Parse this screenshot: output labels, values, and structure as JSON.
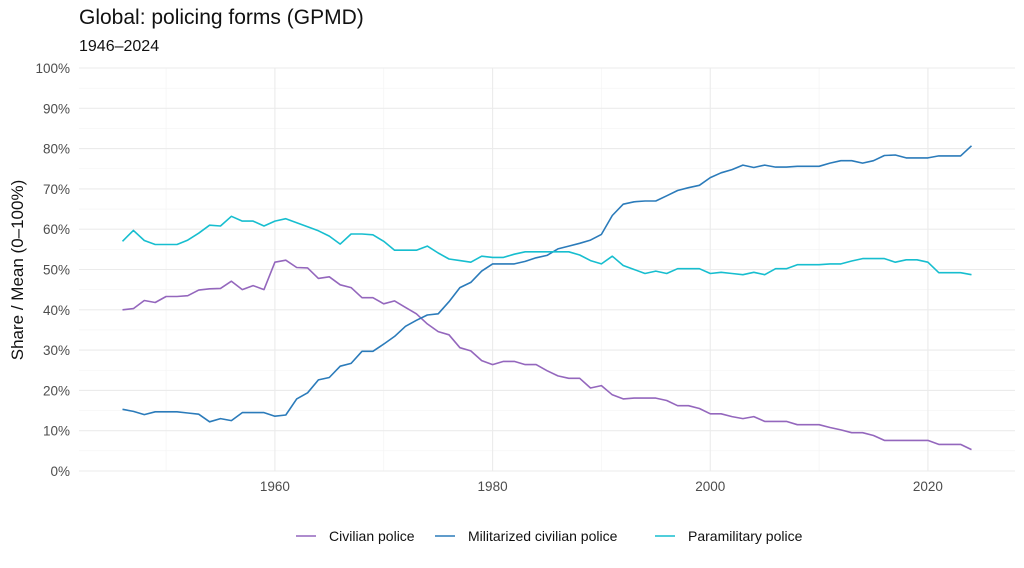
{
  "chart_data": {
    "type": "line",
    "title": "Global: policing forms (GPMD)",
    "subtitle": "1946–2024",
    "xlabel": "",
    "ylabel": "Share / Mean (0–100%)",
    "xlim": [
      1942,
      2028
    ],
    "ylim": [
      0,
      100
    ],
    "x_ticks": [
      1960,
      1980,
      2000,
      2020
    ],
    "y_ticks": [
      "0%",
      "10%",
      "20%",
      "30%",
      "40%",
      "50%",
      "60%",
      "70%",
      "80%",
      "90%",
      "100%"
    ],
    "grid": true,
    "legend_position": "bottom",
    "x": [
      1946,
      1947,
      1948,
      1949,
      1950,
      1951,
      1952,
      1953,
      1954,
      1955,
      1956,
      1957,
      1958,
      1959,
      1960,
      1961,
      1962,
      1963,
      1964,
      1965,
      1966,
      1967,
      1968,
      1969,
      1970,
      1971,
      1972,
      1973,
      1974,
      1975,
      1976,
      1977,
      1978,
      1979,
      1980,
      1981,
      1982,
      1983,
      1984,
      1985,
      1986,
      1987,
      1988,
      1989,
      1990,
      1991,
      1992,
      1993,
      1994,
      1995,
      1996,
      1997,
      1998,
      1999,
      2000,
      2001,
      2002,
      2003,
      2004,
      2005,
      2006,
      2007,
      2008,
      2009,
      2010,
      2011,
      2012,
      2013,
      2014,
      2015,
      2016,
      2017,
      2018,
      2019,
      2020,
      2021,
      2022,
      2023,
      2024
    ],
    "series": [
      {
        "name": "Civilian police",
        "color": "#9467bd",
        "values": [
          40.0,
          40.3,
          42.3,
          41.8,
          43.3,
          43.3,
          43.5,
          44.9,
          45.2,
          45.3,
          47.1,
          45.0,
          46.0,
          45.0,
          51.8,
          52.3,
          50.5,
          50.4,
          47.8,
          48.2,
          46.2,
          45.5,
          43.0,
          43.0,
          41.5,
          42.2,
          40.6,
          39.0,
          36.5,
          34.6,
          33.8,
          30.6,
          29.8,
          27.4,
          26.4,
          27.2,
          27.2,
          26.4,
          26.4,
          24.9,
          23.6,
          23.0,
          23.0,
          20.6,
          21.2,
          18.9,
          17.9,
          18.1,
          18.1,
          18.1,
          17.5,
          16.2,
          16.2,
          15.5,
          14.2,
          14.2,
          13.5,
          13.0,
          13.5,
          12.3,
          12.3,
          12.3,
          11.5,
          11.5,
          11.5,
          10.8,
          10.2,
          9.5,
          9.5,
          8.8,
          7.6,
          7.6,
          7.6,
          7.6,
          7.6,
          6.6,
          6.6,
          6.6,
          5.3
        ]
      },
      {
        "name": "Militarized civilian police",
        "color": "#2b7bba",
        "values": [
          15.3,
          14.8,
          14.0,
          14.7,
          14.7,
          14.7,
          14.4,
          14.1,
          12.2,
          13.0,
          12.5,
          14.5,
          14.5,
          14.5,
          13.6,
          13.9,
          17.9,
          19.4,
          22.6,
          23.2,
          26.0,
          26.7,
          29.7,
          29.7,
          31.5,
          33.4,
          35.9,
          37.4,
          38.7,
          39.0,
          42.0,
          45.5,
          46.8,
          49.6,
          51.4,
          51.4,
          51.4,
          52.0,
          52.9,
          53.5,
          55.1,
          55.8,
          56.5,
          57.3,
          58.7,
          63.4,
          66.2,
          66.8,
          67.0,
          67.0,
          68.3,
          69.6,
          70.3,
          70.9,
          72.8,
          74.0,
          74.8,
          75.9,
          75.3,
          75.9,
          75.4,
          75.4,
          75.6,
          75.6,
          75.6,
          76.4,
          77.0,
          77.0,
          76.4,
          77.0,
          78.3,
          78.4,
          77.7,
          77.7,
          77.7,
          78.2,
          78.2,
          78.2,
          80.7
        ]
      },
      {
        "name": "Paramilitary police",
        "color": "#17becf",
        "values": [
          57.0,
          59.7,
          57.2,
          56.2,
          56.2,
          56.2,
          57.3,
          59.0,
          61.0,
          60.8,
          63.2,
          62.0,
          62.0,
          60.8,
          62.0,
          62.6,
          61.6,
          60.6,
          59.6,
          58.3,
          56.3,
          58.8,
          58.8,
          58.6,
          57.0,
          54.8,
          54.8,
          54.8,
          55.8,
          54.1,
          52.6,
          52.2,
          51.8,
          53.3,
          53.0,
          53.0,
          53.8,
          54.4,
          54.4,
          54.4,
          54.4,
          54.4,
          53.6,
          52.2,
          51.4,
          53.3,
          51.0,
          50.0,
          49.0,
          49.6,
          49.0,
          50.2,
          50.2,
          50.2,
          49.0,
          49.3,
          49.0,
          48.7,
          49.3,
          48.7,
          50.2,
          50.2,
          51.2,
          51.2,
          51.2,
          51.4,
          51.4,
          52.1,
          52.7,
          52.7,
          52.7,
          51.8,
          52.4,
          52.4,
          51.8,
          49.2,
          49.2,
          49.2,
          48.7
        ]
      }
    ]
  }
}
